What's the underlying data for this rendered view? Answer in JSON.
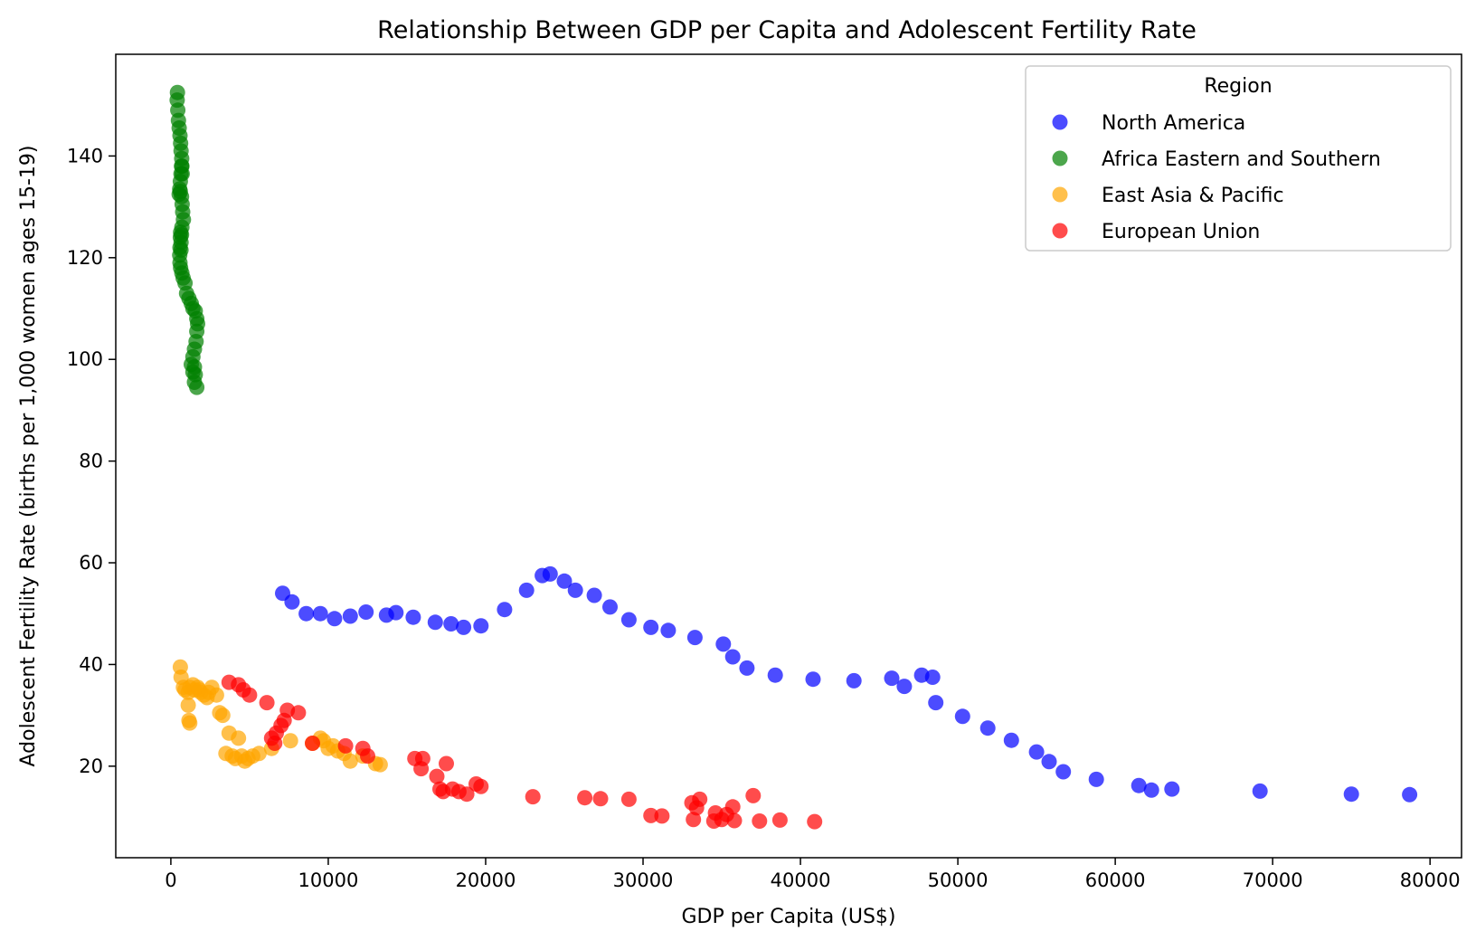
{
  "chart_data": {
    "type": "scatter",
    "title": "Relationship Between GDP per Capita and Adolescent Fertility Rate",
    "xlabel": "GDP per Capita (US$)",
    "ylabel": "Adolescent Fertility Rate (births per 1,000 women ages 15-19)",
    "xlim": [
      -3500,
      82000
    ],
    "ylim": [
      2,
      160
    ],
    "xticks": [
      0,
      10000,
      20000,
      30000,
      40000,
      50000,
      60000,
      70000,
      80000
    ],
    "yticks": [
      20,
      40,
      60,
      80,
      100,
      120,
      140
    ],
    "legend_title": "Region",
    "legend_position": "top-right",
    "grid": false,
    "series": [
      {
        "name": "North America",
        "color": "#0000ff",
        "x": [
          7100,
          7700,
          8600,
          9500,
          10400,
          11400,
          12400,
          13700,
          14300,
          15400,
          16800,
          17800,
          18600,
          19700,
          21200,
          22600,
          23600,
          24100,
          25000,
          25700,
          26900,
          27900,
          29100,
          30500,
          31600,
          33300,
          35100,
          35700,
          36600,
          38400,
          40800,
          43400,
          45800,
          46600,
          47700,
          48400,
          48600,
          50300,
          51900,
          53400,
          55000,
          55800,
          56700,
          58800,
          61500,
          62300,
          63600,
          69200,
          75000,
          78700
        ],
        "y": [
          54,
          52.3,
          50,
          50,
          49,
          49.5,
          50.3,
          49.7,
          50.2,
          49.3,
          48.3,
          48,
          47.3,
          47.6,
          50.8,
          54.6,
          57.5,
          57.8,
          56.4,
          54.6,
          53.6,
          51.3,
          48.8,
          47.3,
          46.7,
          45.3,
          44,
          41.5,
          39.3,
          37.9,
          37.1,
          36.8,
          37.3,
          35.7,
          37.9,
          37.5,
          32.5,
          29.8,
          27.5,
          25.1,
          22.8,
          20.9,
          18.9,
          17.4,
          16.2,
          15.3,
          15.5,
          15.1,
          14.5,
          14.4
        ]
      },
      {
        "name": "Africa Eastern and Southern",
        "color": "#008000",
        "x": [
          420,
          400,
          440,
          480,
          530,
          580,
          620,
          650,
          690,
          700,
          720,
          680,
          640,
          600,
          560,
          530,
          600,
          680,
          720,
          750,
          800,
          700,
          680,
          650,
          640,
          620,
          600,
          580,
          560,
          580,
          620,
          700,
          780,
          900,
          1000,
          1150,
          1300,
          1400,
          1550,
          1650,
          1700,
          1650,
          1600,
          1500,
          1400,
          1300,
          1400,
          1500,
          1550,
          1500,
          1650
        ],
        "y": [
          152.5,
          151,
          149,
          147,
          145.5,
          144,
          142.5,
          141,
          139.5,
          138,
          136.5,
          138,
          136.5,
          135,
          133.5,
          132.5,
          133,
          132,
          130.5,
          129,
          127.5,
          126,
          124.5,
          123,
          121.5,
          125,
          124,
          122,
          120.5,
          119,
          118,
          117,
          116,
          115,
          113,
          112,
          111,
          110,
          109.5,
          108,
          107,
          105.5,
          103.5,
          102,
          100.5,
          99,
          97.5,
          98.5,
          97,
          95.5,
          94.5
        ]
      },
      {
        "name": "East Asia & Pacific",
        "color": "#ffa500",
        "x": [
          600,
          650,
          800,
          900,
          1100,
          1200,
          1400,
          1500,
          1700,
          1800,
          1900,
          2100,
          2300,
          2400,
          2600,
          2900,
          3100,
          3300,
          3500,
          3700,
          3900,
          4100,
          4300,
          4500,
          4700,
          4900,
          5200,
          5600,
          6400,
          7600,
          9000,
          9500,
          9700,
          10000,
          10300,
          10600,
          11000,
          11400,
          12200,
          13000,
          13300,
          1100,
          1150,
          1200
        ],
        "y": [
          39.5,
          37.5,
          35.5,
          35,
          34.5,
          35.5,
          36,
          35,
          35.5,
          35,
          34.5,
          34,
          33.5,
          34.5,
          35.5,
          34,
          30.5,
          30,
          22.5,
          26.5,
          22,
          21.5,
          25.5,
          22,
          21,
          21.5,
          22,
          22.5,
          23.5,
          25,
          24.5,
          25.5,
          25,
          23.5,
          24,
          23,
          22.5,
          21,
          22,
          20.5,
          20.3,
          32,
          29,
          28.5
        ]
      },
      {
        "name": "European Union",
        "color": "#ff0000",
        "x": [
          3700,
          4300,
          4600,
          5000,
          6100,
          6400,
          6600,
          6700,
          7000,
          7200,
          7400,
          8100,
          9000,
          11100,
          12200,
          12500,
          15500,
          15900,
          16000,
          16900,
          17100,
          17300,
          17500,
          17900,
          18300,
          18800,
          19400,
          19700,
          23000,
          26300,
          27300,
          29100,
          30500,
          31200,
          33100,
          33200,
          33400,
          33600,
          34500,
          34600,
          35000,
          35300,
          35700,
          35800,
          37000,
          37400,
          38700,
          40900
        ],
        "y": [
          36.5,
          36,
          35,
          34,
          32.5,
          25.5,
          24.5,
          26.5,
          28,
          29,
          31,
          30.5,
          24.5,
          24,
          23.5,
          22,
          21.5,
          19.5,
          21.5,
          18,
          15.5,
          15,
          20.5,
          15.5,
          15,
          14.5,
          16.5,
          16,
          14,
          13.8,
          13.6,
          13.5,
          10.3,
          10.2,
          12.8,
          9.5,
          11.8,
          13.5,
          9.2,
          10.8,
          9.5,
          10.5,
          12,
          9.3,
          14.2,
          9.2,
          9.4,
          9.1
        ]
      }
    ]
  }
}
